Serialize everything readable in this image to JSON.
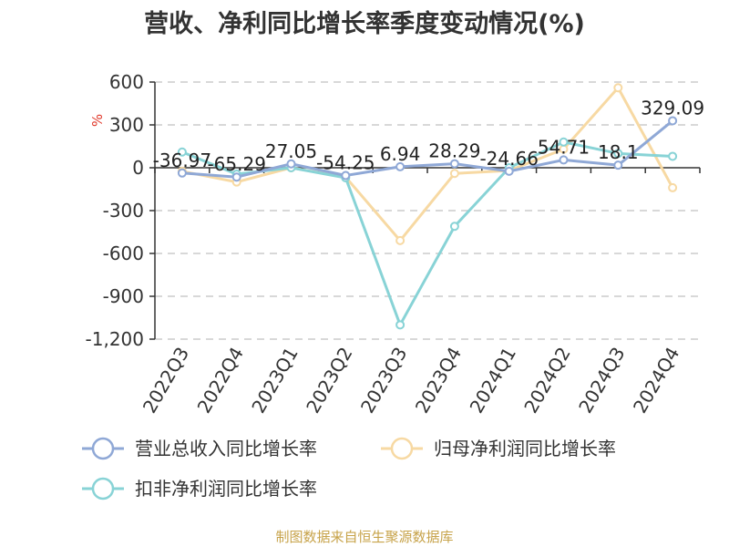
{
  "title": "营收、净利同比增长率季度变动情况(%)",
  "source": "制图数据来自恒生聚源数据库",
  "chart_data": {
    "type": "line",
    "title": "营收、净利同比增长率季度变动情况(%)",
    "unit": "%",
    "categories": [
      "2022Q3",
      "2022Q4",
      "2023Q1",
      "2023Q2",
      "2023Q3",
      "2023Q4",
      "2024Q1",
      "2024Q2",
      "2024Q3",
      "2024Q4"
    ],
    "ylim": [
      -1200,
      600
    ],
    "yticks": [
      600,
      300,
      0,
      -300,
      -600,
      -900,
      -1200
    ],
    "ytick_labels": [
      "600",
      "300",
      "0",
      "-300",
      "-600",
      "-900",
      "-1,200"
    ],
    "grid": true,
    "legend_position": "bottom",
    "series": [
      {
        "name": "营业总收入同比增长率",
        "color": "#8fa8d6",
        "values": [
          -36.97,
          -65.29,
          27.05,
          -54.25,
          6.94,
          28.29,
          -24.66,
          54.71,
          18.1,
          329.09
        ],
        "labels": [
          "-36.97",
          "-65.29",
          "27.05",
          "-54.25",
          "6.94",
          "28.29",
          "-24.66",
          "54.71",
          "18.1",
          "329.09"
        ]
      },
      {
        "name": "归母净利润同比增长率",
        "color": "#f7d9a3",
        "values": [
          -25,
          -100,
          0,
          -65,
          -510,
          -40,
          -20,
          130,
          560,
          -140
        ]
      },
      {
        "name": "扣非净利润同比增长率",
        "color": "#88d3d6",
        "values": [
          110,
          -45,
          0,
          -70,
          -1100,
          -410,
          0,
          180,
          100,
          80
        ]
      }
    ]
  }
}
